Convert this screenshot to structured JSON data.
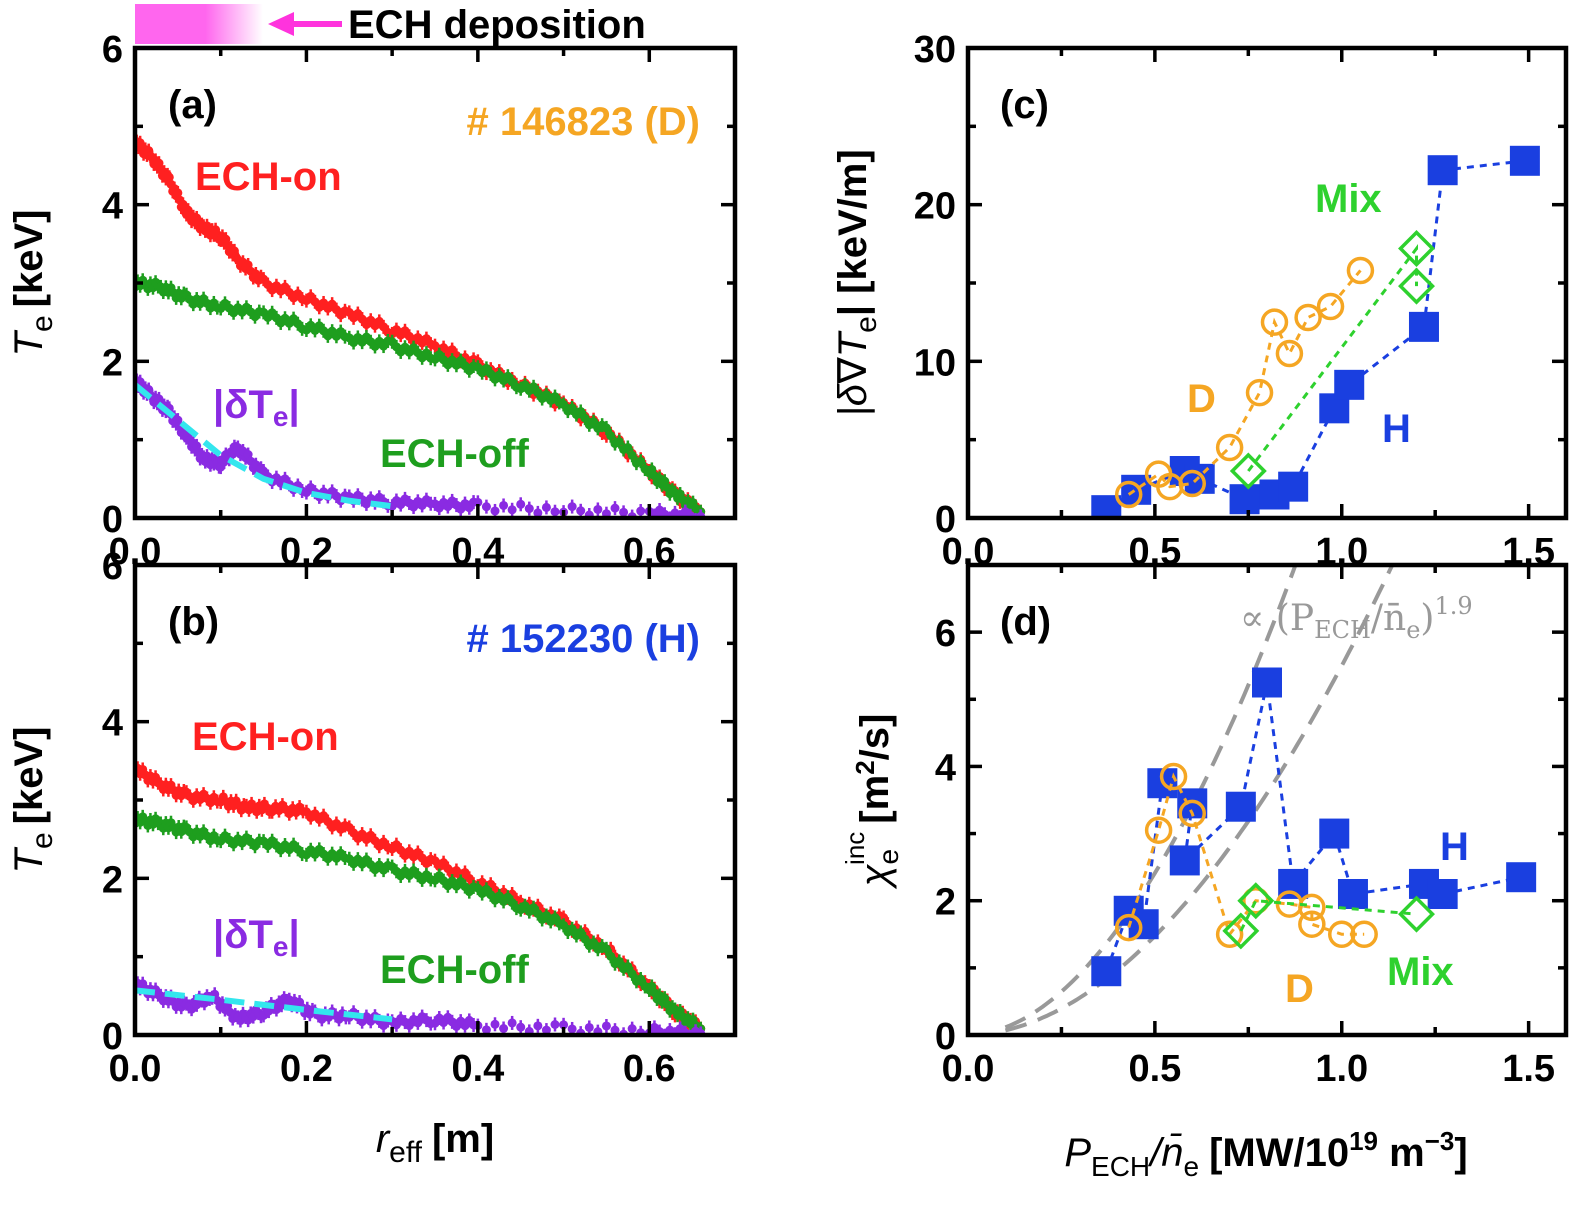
{
  "top_note": {
    "label": "ECH deposition",
    "bar_color_start": "#ff66ee",
    "bar_color_end": "#ffffff",
    "arrow_color": "#ff33dd"
  },
  "chart_data": [
    {
      "id": "a",
      "type": "scatter",
      "panel_label": "(a)",
      "shot": "# 146823 (D)",
      "shot_color": "#f5a623",
      "xlim": [
        0,
        0.7
      ],
      "ylim": [
        0,
        6
      ],
      "xticks": [
        "0.0",
        "0.2",
        "0.4",
        "0.6"
      ],
      "yticks": [
        "0",
        "2",
        "4",
        "6"
      ],
      "ylabel_main": "T",
      "ylabel_sub": "e",
      "ylabel_unit": "[keV]",
      "series": [
        {
          "name": "ECH-on",
          "color": "#ff2020",
          "label": "ECH-on",
          "x": [
            0.0,
            0.02,
            0.04,
            0.06,
            0.08,
            0.1,
            0.12,
            0.15,
            0.2,
            0.25,
            0.3,
            0.35,
            0.4,
            0.45,
            0.5,
            0.55,
            0.6,
            0.63,
            0.66
          ],
          "y": [
            4.8,
            4.6,
            4.3,
            3.9,
            3.7,
            3.6,
            3.3,
            3.0,
            2.8,
            2.6,
            2.4,
            2.2,
            1.95,
            1.7,
            1.45,
            1.1,
            0.6,
            0.3,
            0.08
          ]
        },
        {
          "name": "ECH-off",
          "color": "#1e9e1e",
          "label": "ECH-off",
          "x": [
            0.0,
            0.03,
            0.06,
            0.1,
            0.15,
            0.2,
            0.25,
            0.3,
            0.35,
            0.4,
            0.45,
            0.5,
            0.55,
            0.6,
            0.63,
            0.66
          ],
          "y": [
            3.0,
            2.95,
            2.8,
            2.7,
            2.6,
            2.45,
            2.3,
            2.2,
            2.05,
            1.9,
            1.7,
            1.45,
            1.1,
            0.6,
            0.3,
            0.08
          ]
        },
        {
          "name": "|δTe|",
          "color": "#8a2be2",
          "label": "|δT",
          "x": [
            0.0,
            0.02,
            0.04,
            0.06,
            0.08,
            0.1,
            0.12,
            0.15,
            0.2,
            0.25,
            0.3,
            0.35,
            0.4,
            0.5,
            0.6,
            0.66
          ],
          "y": [
            1.75,
            1.55,
            1.35,
            1.05,
            0.75,
            0.7,
            0.9,
            0.55,
            0.35,
            0.25,
            0.2,
            0.18,
            0.15,
            0.1,
            0.06,
            0.02
          ]
        },
        {
          "name": "fit",
          "color": "#33e6ee",
          "dashed": true,
          "x": [
            0.0,
            0.05,
            0.1,
            0.15,
            0.2,
            0.25,
            0.3
          ],
          "y": [
            1.7,
            1.25,
            0.8,
            0.5,
            0.32,
            0.22,
            0.15
          ]
        }
      ]
    },
    {
      "id": "b",
      "type": "scatter",
      "panel_label": "(b)",
      "shot": "# 152230 (H)",
      "shot_color": "#1a3fe0",
      "xlim": [
        0,
        0.7
      ],
      "ylim": [
        0,
        6
      ],
      "xticks": [
        "0.0",
        "0.2",
        "0.4",
        "0.6"
      ],
      "yticks": [
        "0",
        "2",
        "4",
        "6"
      ],
      "ylabel_main": "T",
      "ylabel_sub": "e",
      "ylabel_unit": "[keV]",
      "xlabel_main": "r",
      "xlabel_sub": "eff",
      "xlabel_unit": "[m]",
      "series": [
        {
          "name": "ECH-on",
          "color": "#ff2020",
          "label": "ECH-on",
          "x": [
            0.0,
            0.03,
            0.06,
            0.1,
            0.13,
            0.16,
            0.2,
            0.25,
            0.3,
            0.35,
            0.4,
            0.45,
            0.5,
            0.55,
            0.6,
            0.63,
            0.66
          ],
          "y": [
            3.4,
            3.2,
            3.05,
            3.0,
            2.9,
            2.9,
            2.85,
            2.6,
            2.4,
            2.2,
            1.95,
            1.7,
            1.45,
            1.1,
            0.6,
            0.3,
            0.08
          ]
        },
        {
          "name": "ECH-off",
          "color": "#1e9e1e",
          "label": "ECH-off",
          "x": [
            0.0,
            0.03,
            0.06,
            0.1,
            0.15,
            0.2,
            0.25,
            0.3,
            0.35,
            0.4,
            0.45,
            0.5,
            0.55,
            0.6,
            0.63,
            0.66
          ],
          "y": [
            2.75,
            2.7,
            2.6,
            2.5,
            2.45,
            2.35,
            2.25,
            2.1,
            2.0,
            1.85,
            1.65,
            1.4,
            1.05,
            0.6,
            0.3,
            0.08
          ]
        },
        {
          "name": "|δTe|",
          "color": "#8a2be2",
          "label": "|δT",
          "x": [
            0.0,
            0.03,
            0.06,
            0.09,
            0.12,
            0.15,
            0.18,
            0.21,
            0.25,
            0.3,
            0.35,
            0.4,
            0.5,
            0.6,
            0.66
          ],
          "y": [
            0.65,
            0.5,
            0.35,
            0.5,
            0.2,
            0.3,
            0.45,
            0.25,
            0.25,
            0.15,
            0.2,
            0.12,
            0.08,
            0.05,
            0.02
          ]
        },
        {
          "name": "fit",
          "color": "#33e6ee",
          "dashed": true,
          "x": [
            0.0,
            0.1,
            0.2,
            0.3
          ],
          "y": [
            0.57,
            0.45,
            0.32,
            0.2
          ]
        }
      ]
    },
    {
      "id": "c",
      "type": "scatter",
      "panel_label": "(c)",
      "xlim": [
        0,
        1.6
      ],
      "ylim": [
        0,
        30
      ],
      "xticks": [
        "0.0",
        "0.5",
        "1.0",
        "1.5"
      ],
      "yticks": [
        "0",
        "10",
        "20",
        "30"
      ],
      "ylabel_main": "|δ∇T",
      "ylabel_sub": "e",
      "ylabel_unit": "| [keV/m]",
      "series": [
        {
          "name": "H",
          "color": "#1a3fe0",
          "marker": "square",
          "label": "H",
          "x": [
            0.37,
            0.45,
            0.58,
            0.62,
            0.74,
            0.82,
            0.87,
            0.98,
            1.02,
            1.22,
            1.27,
            1.49
          ],
          "y": [
            0.5,
            1.8,
            3.0,
            2.5,
            1.2,
            1.5,
            2.0,
            7.0,
            8.5,
            12.2,
            22.2,
            22.8
          ]
        },
        {
          "name": "D",
          "color": "#f5a623",
          "marker": "circle",
          "label": "D",
          "x": [
            0.43,
            0.51,
            0.54,
            0.6,
            0.7,
            0.78,
            0.82,
            0.86,
            0.91,
            0.97,
            1.05
          ],
          "y": [
            1.5,
            2.8,
            2.0,
            2.2,
            4.5,
            8.0,
            12.5,
            10.5,
            12.8,
            13.5,
            15.8
          ]
        },
        {
          "name": "Mix",
          "color": "#2ed12e",
          "marker": "diamond",
          "label": "Mix",
          "x": [
            0.75,
            1.2,
            1.2
          ],
          "y": [
            3.0,
            17.2,
            14.8
          ]
        }
      ]
    },
    {
      "id": "d",
      "type": "scatter",
      "panel_label": "(d)",
      "xlim": [
        0,
        1.6
      ],
      "ylim": [
        0,
        7
      ],
      "xticks": [
        "0.0",
        "0.5",
        "1.0",
        "1.5"
      ],
      "yticks": [
        "0",
        "2",
        "4",
        "6"
      ],
      "ylabel_main": "χ",
      "ylabel_sub": "e",
      "ylabel_sup": "inc",
      "ylabel_unit": "[m",
      "ylabel_unit_sup": "2",
      "ylabel_unit_end": "/s]",
      "xlabel_main": "P",
      "xlabel_sub": "ECH",
      "xlabel_mid": "/n̄",
      "xlabel_sub2": "e",
      "xlabel_unit": "[MW/10",
      "xlabel_unit_sup": "19",
      "xlabel_unit_mid": " m",
      "xlabel_unit_sup2": "−3",
      "xlabel_unit_end": "]",
      "scaling_label": "∝ (P",
      "scaling_sub": "ECH",
      "scaling_mid": "/n̄",
      "scaling_sub2": "e",
      "scaling_end": ")",
      "scaling_sup": "1.9",
      "scaling_color": "#999999",
      "scaling_exponent": 1.9,
      "scaling_coeffs": [
        9.0,
        5.5
      ],
      "series": [
        {
          "name": "H",
          "color": "#1a3fe0",
          "marker": "square",
          "label": "H",
          "x": [
            0.37,
            0.43,
            0.47,
            0.52,
            0.6,
            0.58,
            0.73,
            0.8,
            0.87,
            0.98,
            1.03,
            1.22,
            1.27,
            1.48
          ],
          "y": [
            0.95,
            1.85,
            1.65,
            3.75,
            3.45,
            2.6,
            3.4,
            5.25,
            2.25,
            3.0,
            2.1,
            2.25,
            2.1,
            2.35
          ]
        },
        {
          "name": "D",
          "color": "#f5a623",
          "marker": "circle",
          "label": "D",
          "x": [
            0.43,
            0.51,
            0.55,
            0.6,
            0.7,
            0.77,
            0.86,
            0.92,
            0.92,
            1.0,
            1.06
          ],
          "y": [
            1.6,
            3.05,
            3.85,
            3.3,
            1.5,
            2.0,
            1.95,
            1.9,
            1.65,
            1.5,
            1.5
          ]
        },
        {
          "name": "Mix",
          "color": "#2ed12e",
          "marker": "diamond",
          "label": "Mix",
          "x": [
            0.73,
            0.77,
            1.2
          ],
          "y": [
            1.55,
            2.0,
            1.8
          ]
        }
      ]
    }
  ]
}
